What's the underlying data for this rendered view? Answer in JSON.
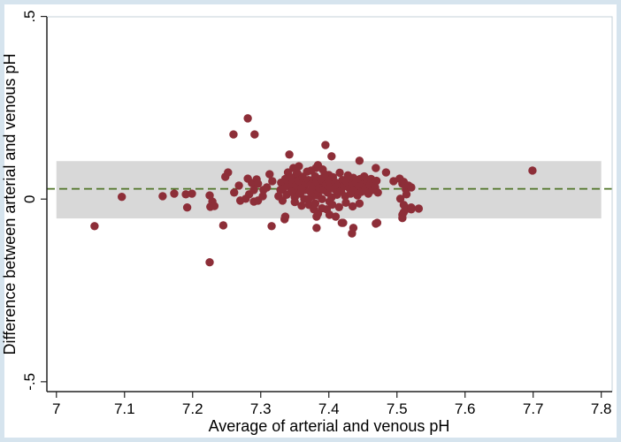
{
  "window": {
    "background": "#ffffff",
    "frame_color": "#d6e4ee",
    "plot_background": "#ffffff",
    "plot_border_color": "#c4d1d8",
    "axis_line_color": "#222222"
  },
  "chart_data": {
    "type": "scatter",
    "title": "",
    "xlabel": "Average of arterial and venous pH",
    "ylabel": "Difference between arterial and venous pH",
    "xlim": [
      6.986,
      7.816
    ],
    "ylim": [
      -0.527,
      0.499
    ],
    "grid": false,
    "legend": "none",
    "x_ticks": [
      7,
      7.1,
      7.2,
      7.3,
      7.4,
      7.5,
      7.6,
      7.7,
      7.8
    ],
    "x_tick_labels": [
      "7",
      "7.1",
      "7.2",
      "7.3",
      "7.4",
      "7.5",
      "7.6",
      "7.7",
      "7.8"
    ],
    "y_ticks": [
      0.5,
      0,
      -0.5
    ],
    "y_tick_labels": [
      ".5",
      "0",
      "-.5"
    ],
    "mean_difference_line": {
      "y": 0.028,
      "color": "#507428",
      "style": "dashed",
      "x_start": 6.986,
      "x_end": 7.816
    },
    "limits_of_agreement_band": {
      "lower": -0.053,
      "upper": 0.104,
      "x_start": 7.0,
      "x_end": 7.8,
      "color": "#d8d8d8"
    },
    "marker": {
      "color": "#8d2e38",
      "radius_px": 4.7
    },
    "points": [
      [
        7.056,
        -0.074
      ],
      [
        7.096,
        0.006
      ],
      [
        7.156,
        0.008
      ],
      [
        7.173,
        0.015
      ],
      [
        7.19,
        0.013
      ],
      [
        7.199,
        0.015
      ],
      [
        7.192,
        -0.023
      ],
      [
        7.225,
        0.01
      ],
      [
        7.229,
        -0.007
      ],
      [
        7.226,
        -0.021
      ],
      [
        7.232,
        -0.019
      ],
      [
        7.245,
        -0.072
      ],
      [
        7.225,
        -0.173
      ],
      [
        7.248,
        0.061
      ],
      [
        7.26,
        0.177
      ],
      [
        7.281,
        0.221
      ],
      [
        7.291,
        0.177
      ],
      [
        7.252,
        0.073
      ],
      [
        7.261,
        0.018
      ],
      [
        7.268,
        0.037
      ],
      [
        7.27,
        -0.004
      ],
      [
        7.278,
        0.001
      ],
      [
        7.281,
        0.056
      ],
      [
        7.283,
        0.013
      ],
      [
        7.287,
        0.044
      ],
      [
        7.29,
        0.025
      ],
      [
        7.29,
        -0.007
      ],
      [
        7.294,
        0.054
      ],
      [
        7.296,
        0.042
      ],
      [
        7.296,
        -0.004
      ],
      [
        7.303,
        0.008
      ],
      [
        7.304,
        0.025
      ],
      [
        7.309,
        0.032
      ],
      [
        7.313,
        0.068
      ],
      [
        7.316,
        -0.074
      ],
      [
        7.317,
        0.049
      ],
      [
        7.326,
        0.008
      ],
      [
        7.329,
        0.025
      ],
      [
        7.332,
        -0.004
      ],
      [
        7.335,
        -0.055
      ],
      [
        7.336,
        -0.048
      ],
      [
        7.34,
        0.073
      ],
      [
        7.342,
        0.122
      ],
      [
        7.342,
        0.049
      ],
      [
        7.348,
        0.085
      ],
      [
        7.349,
        0.032
      ],
      [
        7.352,
        0.066
      ],
      [
        7.356,
        0.09
      ],
      [
        7.356,
        0.02
      ],
      [
        7.358,
        0.042
      ],
      [
        7.361,
        0.061
      ],
      [
        7.365,
        0.025
      ],
      [
        7.371,
        -0.016
      ],
      [
        7.374,
        0.078
      ],
      [
        7.378,
        0.054
      ],
      [
        7.378,
        -0.028
      ],
      [
        7.381,
        0.085
      ],
      [
        7.382,
        0.018
      ],
      [
        7.382,
        -0.048
      ],
      [
        7.382,
        -0.079
      ],
      [
        7.384,
        0.093
      ],
      [
        7.384,
        -0.04
      ],
      [
        7.387,
        0.044
      ],
      [
        7.391,
        0.081
      ],
      [
        7.395,
        0.148
      ],
      [
        7.395,
        0.054
      ],
      [
        7.397,
        0.032
      ],
      [
        7.397,
        -0.028
      ],
      [
        7.4,
        0.066
      ],
      [
        7.401,
        -0.007
      ],
      [
        7.401,
        -0.043
      ],
      [
        7.404,
        0.117
      ],
      [
        7.41,
        -0.048
      ],
      [
        7.419,
        -0.065
      ],
      [
        7.421,
        -0.065
      ],
      [
        7.434,
        -0.094
      ],
      [
        7.436,
        -0.079
      ],
      [
        7.445,
        0.105
      ],
      [
        7.469,
        0.085
      ],
      [
        7.469,
        -0.067
      ],
      [
        7.471,
        -0.065
      ],
      [
        7.484,
        0.073
      ],
      [
        7.495,
        0.049
      ],
      [
        7.504,
        0.056
      ],
      [
        7.505,
        0.001
      ],
      [
        7.508,
        0.042
      ],
      [
        7.508,
        -0.043
      ],
      [
        7.508,
        -0.052
      ],
      [
        7.51,
        0.047
      ],
      [
        7.51,
        -0.016
      ],
      [
        7.51,
        -0.036
      ],
      [
        7.513,
        0.027
      ],
      [
        7.514,
        0.013
      ],
      [
        7.517,
        0.037
      ],
      [
        7.516,
        -0.026
      ],
      [
        7.521,
        0.032
      ],
      [
        7.521,
        -0.023
      ],
      [
        7.521,
        -0.028
      ],
      [
        7.532,
        -0.026
      ],
      [
        7.699,
        0.078
      ],
      [
        7.33,
        0.045
      ],
      [
        7.333,
        0.028
      ],
      [
        7.336,
        0.055
      ],
      [
        7.338,
        0.012
      ],
      [
        7.34,
        0.036
      ],
      [
        7.343,
        0.06
      ],
      [
        7.345,
        0.02
      ],
      [
        7.347,
        0.047
      ],
      [
        7.35,
        0.005
      ],
      [
        7.352,
        0.038
      ],
      [
        7.354,
        0.07
      ],
      [
        7.356,
        0.05
      ],
      [
        7.358,
        0.015
      ],
      [
        7.36,
        0.03
      ],
      [
        7.362,
        0.058
      ],
      [
        7.364,
        0.0
      ],
      [
        7.366,
        0.042
      ],
      [
        7.368,
        0.075
      ],
      [
        7.37,
        0.052
      ],
      [
        7.372,
        0.022
      ],
      [
        7.374,
        0.04
      ],
      [
        7.376,
        0.008
      ],
      [
        7.378,
        0.035
      ],
      [
        7.38,
        0.062
      ],
      [
        7.382,
        0.048
      ],
      [
        7.384,
        0.01
      ],
      [
        7.386,
        0.03
      ],
      [
        7.388,
        0.055
      ],
      [
        7.39,
        0.0
      ],
      [
        7.392,
        0.025
      ],
      [
        7.394,
        0.068
      ],
      [
        7.396,
        0.04
      ],
      [
        7.398,
        0.018
      ],
      [
        7.4,
        0.05
      ],
      [
        7.402,
        0.032
      ],
      [
        7.404,
        0.005
      ],
      [
        7.406,
        0.06
      ],
      [
        7.408,
        0.028
      ],
      [
        7.41,
        0.045
      ],
      [
        7.412,
        0.012
      ],
      [
        7.414,
        0.038
      ],
      [
        7.416,
        0.072
      ],
      [
        7.418,
        0.022
      ],
      [
        7.42,
        0.052
      ],
      [
        7.422,
        0.035
      ],
      [
        7.424,
        0.008
      ],
      [
        7.426,
        0.048
      ],
      [
        7.428,
        0.065
      ],
      [
        7.43,
        0.03
      ],
      [
        7.432,
        0.015
      ],
      [
        7.434,
        0.042
      ],
      [
        7.436,
        0.058
      ],
      [
        7.438,
        0.025
      ],
      [
        7.44,
        0.045
      ],
      [
        7.442,
        0.01
      ],
      [
        7.444,
        0.035
      ],
      [
        7.446,
        0.055
      ],
      [
        7.448,
        0.02
      ],
      [
        7.45,
        0.04
      ],
      [
        7.452,
        0.062
      ],
      [
        7.454,
        0.03
      ],
      [
        7.456,
        0.048
      ],
      [
        7.458,
        0.015
      ],
      [
        7.46,
        0.038
      ],
      [
        7.462,
        0.055
      ],
      [
        7.464,
        0.025
      ],
      [
        7.466,
        0.042
      ],
      [
        7.468,
        0.032
      ],
      [
        7.47,
        0.05
      ],
      [
        7.472,
        0.018
      ],
      [
        7.405,
        -0.015
      ],
      [
        7.415,
        -0.022
      ],
      [
        7.425,
        -0.01
      ],
      [
        7.435,
        -0.02
      ],
      [
        7.445,
        -0.012
      ],
      [
        7.39,
        -0.025
      ],
      [
        7.38,
        -0.012
      ],
      [
        7.37,
        0.0
      ],
      [
        7.36,
        -0.018
      ],
      [
        7.35,
        -0.008
      ]
    ]
  }
}
